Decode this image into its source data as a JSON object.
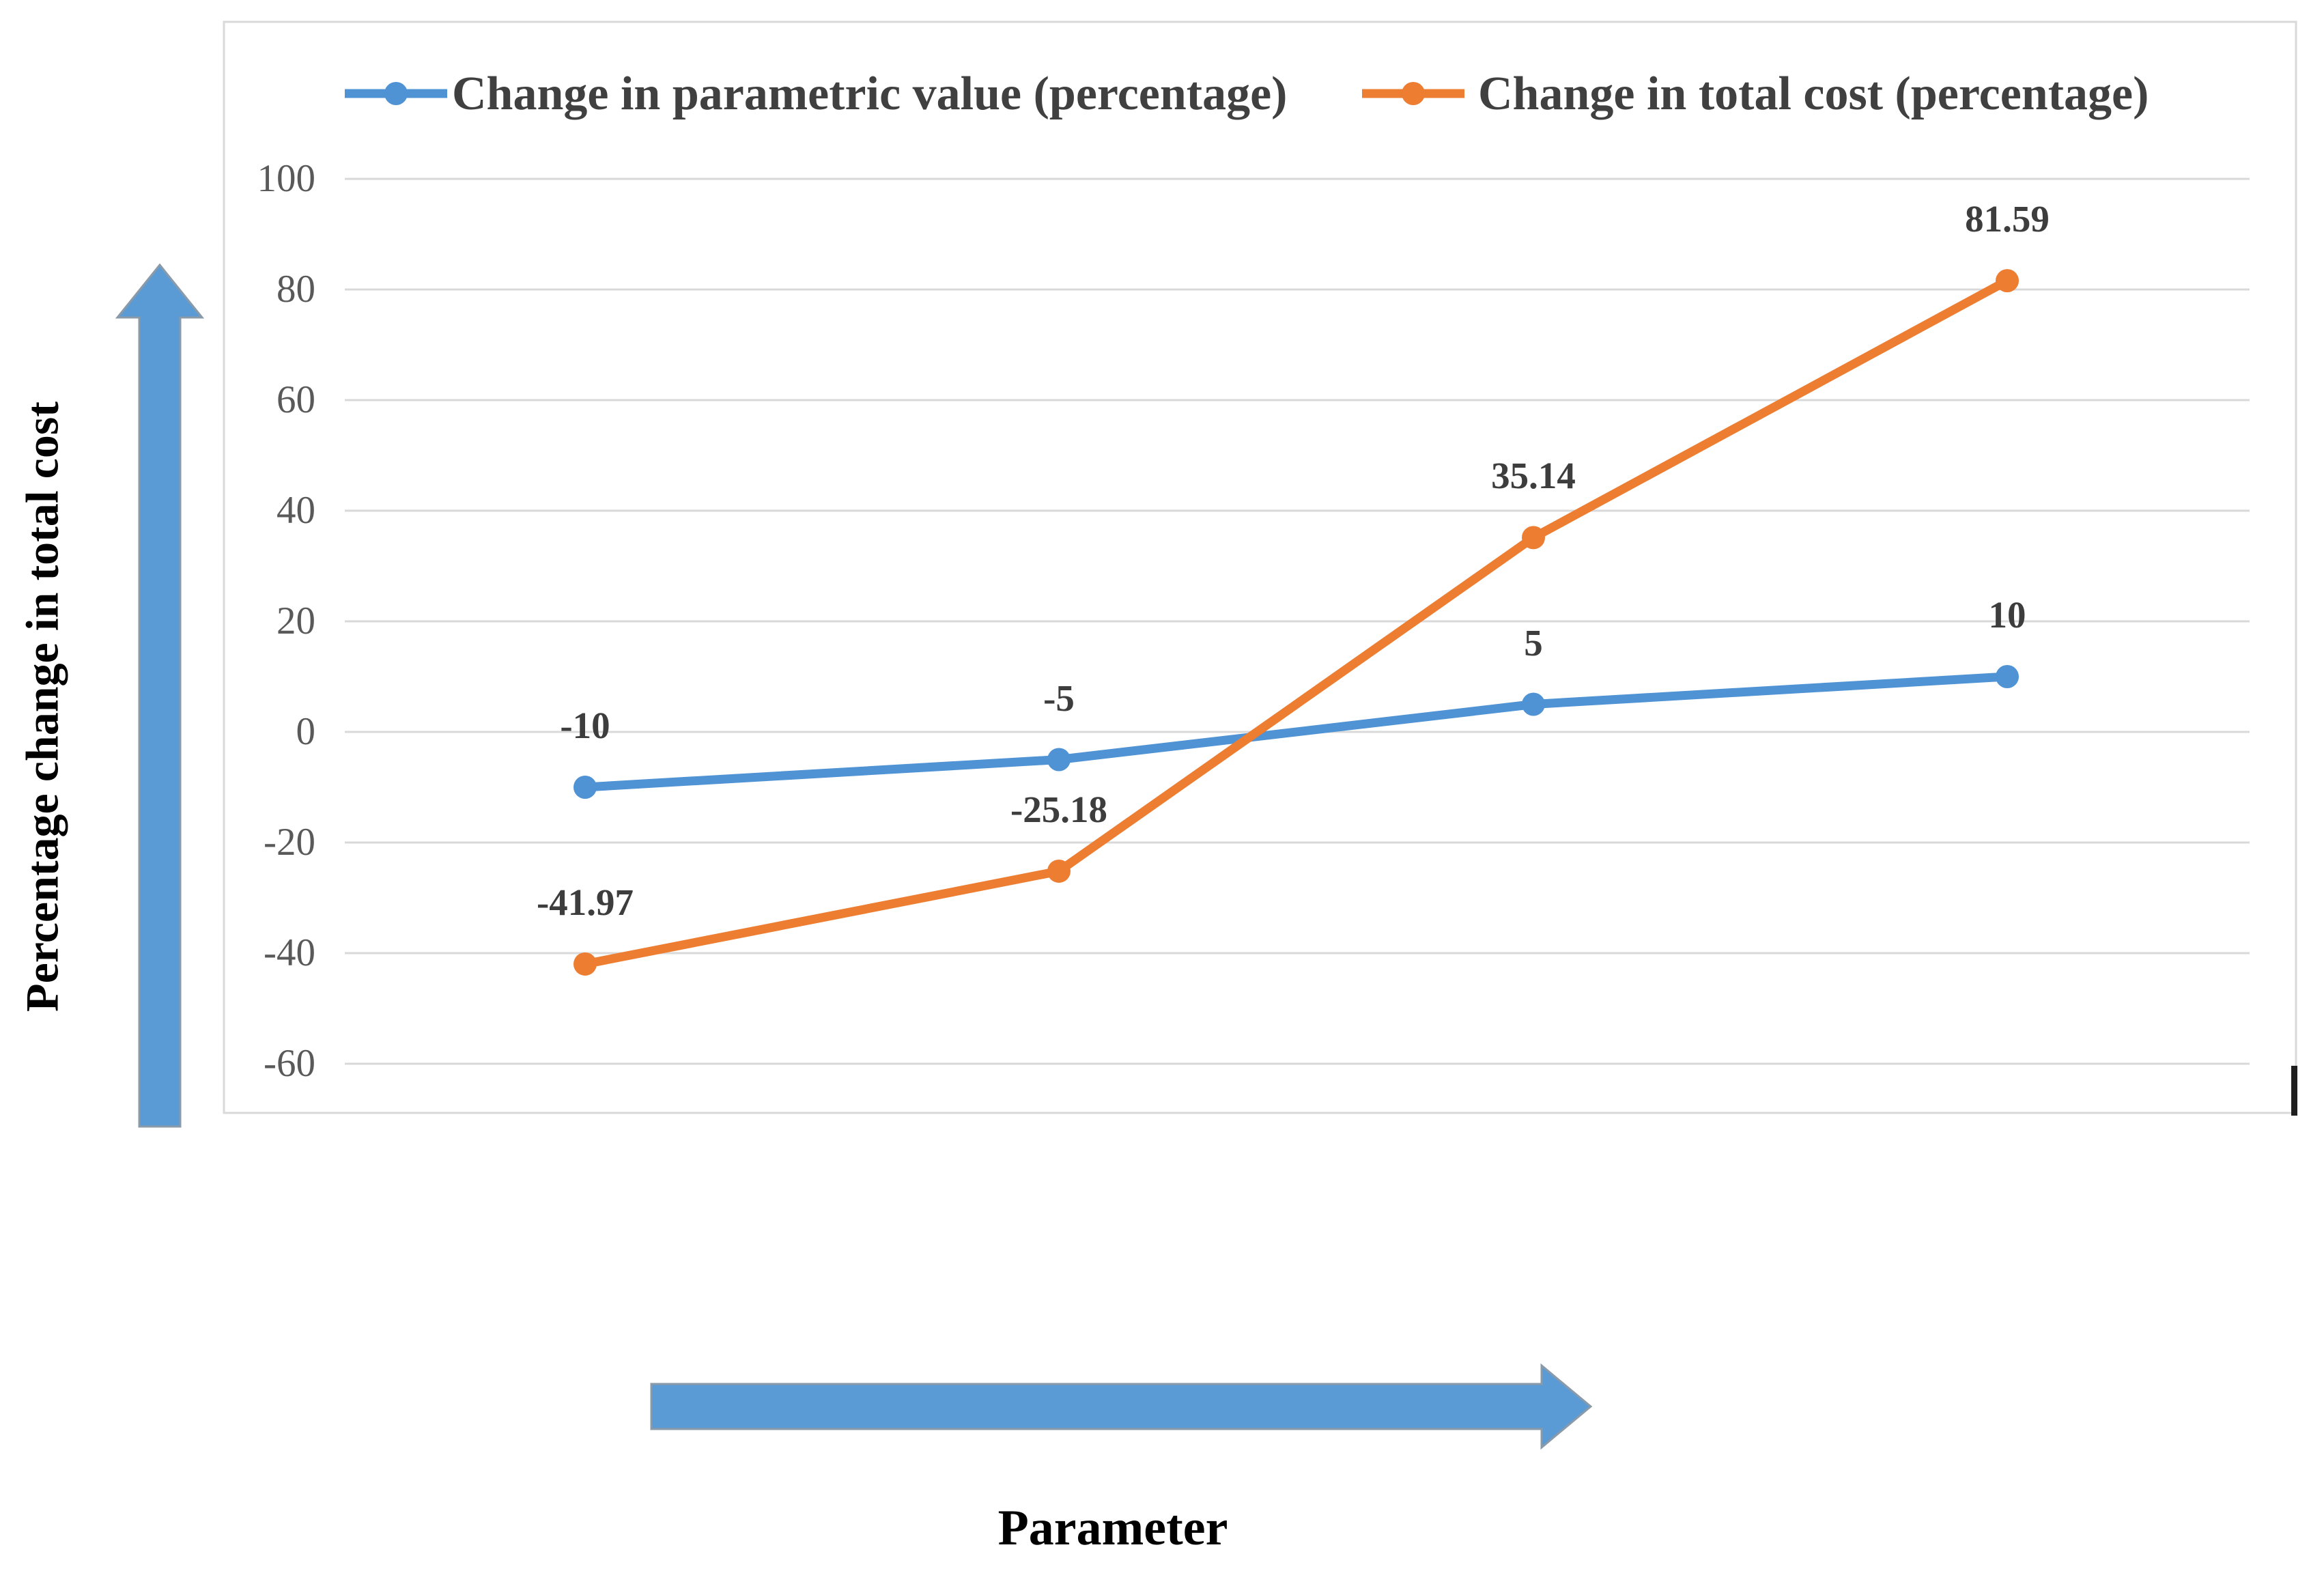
{
  "chart_data": {
    "type": "line",
    "x": [
      1,
      2,
      3,
      4
    ],
    "categories": [
      "",
      "",
      "",
      ""
    ],
    "series": [
      {
        "name": "Change in parametric value (percentage)",
        "color": "#4f93d5",
        "values": [
          -10,
          -5,
          5,
          10
        ]
      },
      {
        "name": "Change in total cost (percentage)",
        "color": "#ED7D31",
        "values": [
          -41.97,
          -25.18,
          35.14,
          81.59
        ]
      }
    ],
    "yticks": [
      100,
      80,
      60,
      40,
      20,
      0,
      -20,
      -40,
      -60
    ],
    "ylim": [
      -70,
      100
    ],
    "grid": "horizontal",
    "legend_position": "top",
    "data_labels": true,
    "xlabel": "Parameter",
    "ylabel": "Percentage change in total cost",
    "title": ""
  },
  "annotations": {
    "y_axis_arrow": "up-arrow",
    "x_axis_arrow": "right-arrow"
  },
  "colors": {
    "arrow_fill": "#5B9BD5",
    "arrow_border": "#8a9aa8",
    "gridline": "#D9D9D9",
    "chart_border": "#D9D9D9",
    "tick_text": "#595959",
    "legend_text": "#404040",
    "data_label_text": "#3d3d3d",
    "axis_label_text": "#000000",
    "background": "#ffffff"
  }
}
